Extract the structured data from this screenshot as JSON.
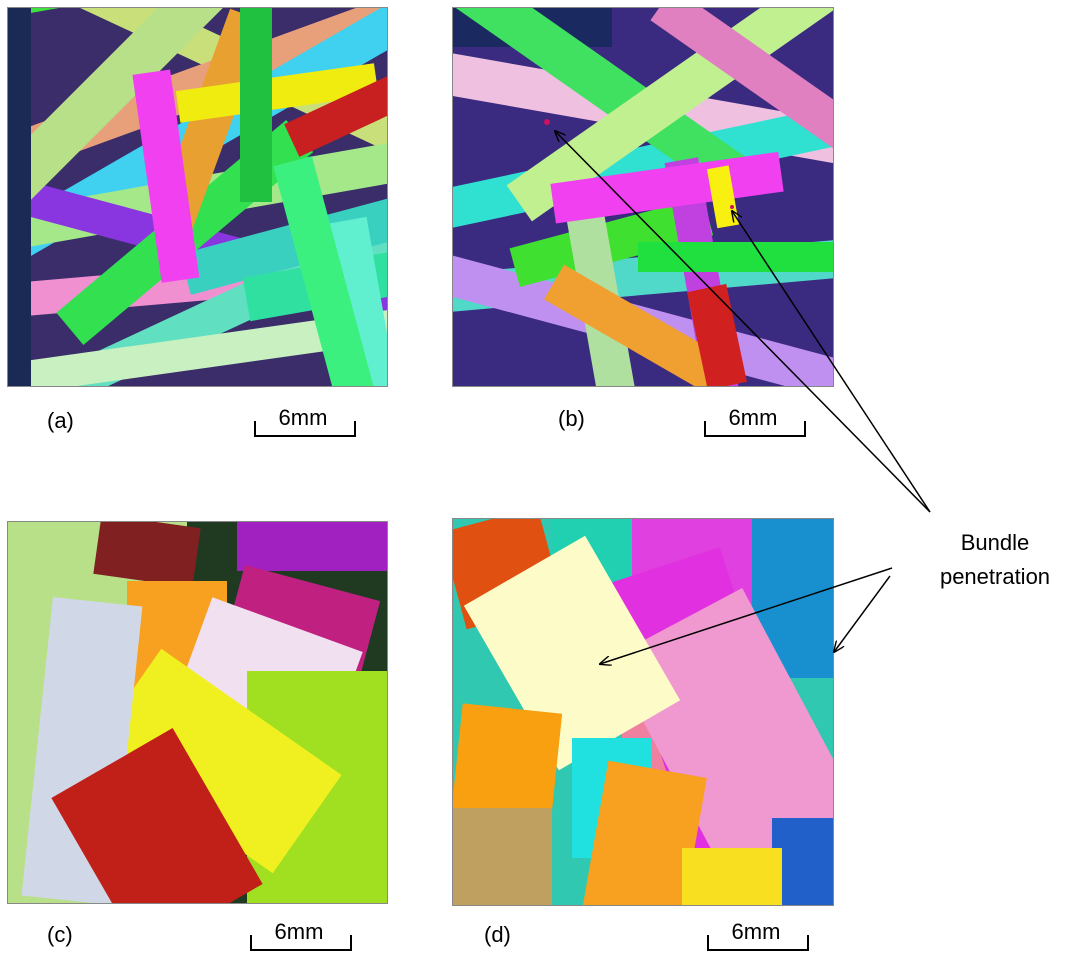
{
  "panels": [
    {
      "label": "(a)",
      "scale": "6mm"
    },
    {
      "label": "(b)",
      "scale": "6mm"
    },
    {
      "label": "(c)",
      "scale": "6mm"
    },
    {
      "label": "(d)",
      "scale": "6mm"
    }
  ],
  "annotation": {
    "line1": "Bundle",
    "line2": "penetration"
  }
}
